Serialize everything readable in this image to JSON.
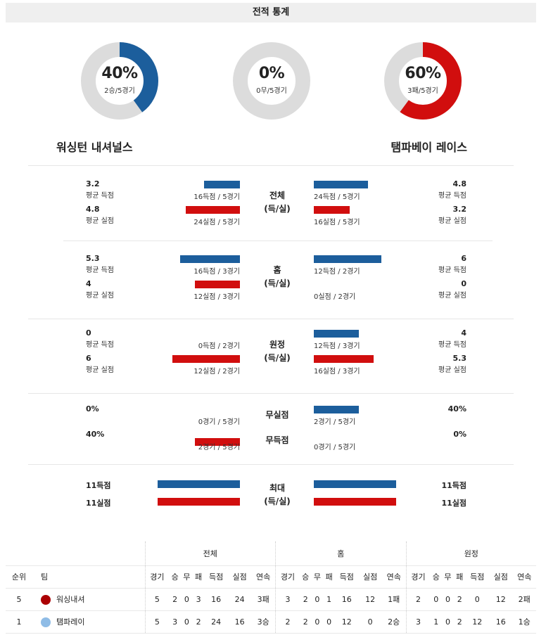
{
  "title": "전적 통계",
  "colors": {
    "blue": "#1c5e9c",
    "red": "#d10e0e",
    "grey": "#dcdcdc"
  },
  "donuts": [
    {
      "pct": "40%",
      "sub": "2승/5경기",
      "value": 0.4,
      "color": "#1c5e9c"
    },
    {
      "pct": "0%",
      "sub": "0무/5경기",
      "value": 0.0,
      "color": "#1c5e9c"
    },
    {
      "pct": "60%",
      "sub": "3패/5경기",
      "value": 0.6,
      "color": "#d10e0e"
    }
  ],
  "teams": {
    "home": "워싱턴 내셔널스",
    "away": "탬파베이 레이스"
  },
  "sections": [
    {
      "center": [
        "전체",
        "(득/실)"
      ],
      "left": [
        {
          "num": "3.2",
          "label": "평균 득점",
          "cap": "16득점 / 5경기",
          "ratio": 0.32
        },
        {
          "num": "4.8",
          "label": "평균 실점",
          "cap": "24실점 / 5경기",
          "ratio": 0.48
        }
      ],
      "right": [
        {
          "num": "4.8",
          "label": "평균 득점",
          "cap": "24득점 / 5경기",
          "ratio": 0.48
        },
        {
          "num": "3.2",
          "label": "평균 실점",
          "cap": "16실점 / 5경기",
          "ratio": 0.32
        }
      ]
    },
    {
      "center": [
        "홈",
        "(득/실)"
      ],
      "left": [
        {
          "num": "5.3",
          "label": "평균 득점",
          "cap": "16득점 / 3경기",
          "ratio": 0.53
        },
        {
          "num": "4",
          "label": "평균 실점",
          "cap": "12실점 / 3경기",
          "ratio": 0.4
        }
      ],
      "right": [
        {
          "num": "6",
          "label": "평균 득점",
          "cap": "12득점 / 2경기",
          "ratio": 0.6
        },
        {
          "num": "0",
          "label": "평균 실점",
          "cap": "0실점 / 2경기",
          "ratio": 0.0
        }
      ]
    },
    {
      "center": [
        "원정",
        "(득/실)"
      ],
      "left": [
        {
          "num": "0",
          "label": "평균 득점",
          "cap": "0득점 / 2경기",
          "ratio": 0.0
        },
        {
          "num": "6",
          "label": "평균 실점",
          "cap": "12실점 / 2경기",
          "ratio": 0.6
        }
      ],
      "right": [
        {
          "num": "4",
          "label": "평균 득점",
          "cap": "12득점 / 3경기",
          "ratio": 0.4
        },
        {
          "num": "5.3",
          "label": "평균 실점",
          "cap": "16실점 / 3경기",
          "ratio": 0.53
        }
      ]
    }
  ],
  "shutout": {
    "center_top": "무실점",
    "center_bottom": "무득점",
    "left": [
      {
        "num": "0%",
        "cap": "0경기 / 5경기",
        "ratio": 0.0
      },
      {
        "num": "40%",
        "cap": "2경기 / 5경기",
        "ratio": 0.4
      }
    ],
    "right": [
      {
        "num": "40%",
        "cap": "2경기 / 5경기",
        "ratio": 0.4
      },
      {
        "num": "0%",
        "cap": "0경기 / 5경기",
        "ratio": 0.0
      }
    ]
  },
  "max": {
    "center": [
      "최대",
      "(득/실)"
    ],
    "left": [
      "11득점",
      "11실점"
    ],
    "right": [
      "11득점",
      "11실점"
    ]
  },
  "standings": {
    "groups": [
      "전체",
      "홈",
      "원정"
    ],
    "col_rank": "순위",
    "col_team": "팀",
    "sub_cols": [
      "경기",
      "승",
      "무",
      "패",
      "득점",
      "실점",
      "연속"
    ],
    "rows": [
      {
        "rank": "5",
        "team": "워싱내셔",
        "logo_color": "#ab0003",
        "total": [
          "5",
          "2",
          "0",
          "3",
          "16",
          "24",
          "3패"
        ],
        "home": [
          "3",
          "2",
          "0",
          "1",
          "16",
          "12",
          "1패"
        ],
        "away": [
          "2",
          "0",
          "0",
          "2",
          "0",
          "12",
          "2패"
        ]
      },
      {
        "rank": "1",
        "team": "탬파레이",
        "logo_color": "#8fbce6",
        "total": [
          "5",
          "3",
          "0",
          "2",
          "24",
          "16",
          "3승"
        ],
        "home": [
          "2",
          "2",
          "0",
          "0",
          "12",
          "0",
          "2승"
        ],
        "away": [
          "3",
          "1",
          "0",
          "2",
          "12",
          "16",
          "1승"
        ]
      }
    ]
  }
}
